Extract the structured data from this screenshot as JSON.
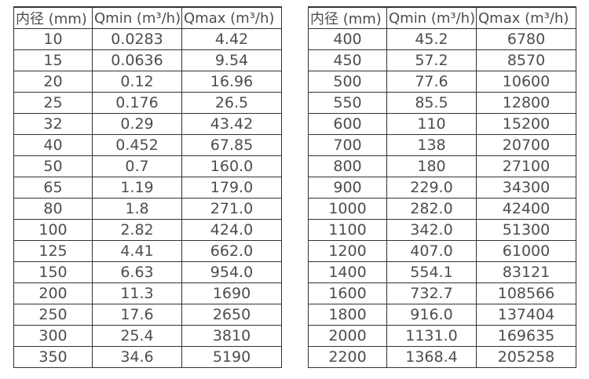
{
  "page": {
    "background": "#ffffff",
    "text_color": "#4d4d4d",
    "border_color": "#333333"
  },
  "tables": [
    {
      "name": "flow-spec-table-small-diameters",
      "headers": [
        "内径 (mm)",
        "Qmin (m³/h)",
        "Qmax (m³/h)"
      ],
      "rows": [
        [
          "10",
          "0.0283",
          "4.42"
        ],
        [
          "15",
          "0.0636",
          "9.54"
        ],
        [
          "20",
          "0.12",
          "16.96"
        ],
        [
          "25",
          "0.176",
          "26.5"
        ],
        [
          "32",
          "0.29",
          "43.42"
        ],
        [
          "40",
          "0.452",
          "67.85"
        ],
        [
          "50",
          "0.7",
          "160.0"
        ],
        [
          "65",
          "1.19",
          "179.0"
        ],
        [
          "80",
          "1.8",
          "271.0"
        ],
        [
          "100",
          "2.82",
          "424.0"
        ],
        [
          "125",
          "4.41",
          "662.0"
        ],
        [
          "150",
          "6.63",
          "954.0"
        ],
        [
          "200",
          "11.3",
          "1690"
        ],
        [
          "250",
          "17.6",
          "2650"
        ],
        [
          "300",
          "25.4",
          "3810"
        ],
        [
          "350",
          "34.6",
          "5190"
        ]
      ]
    },
    {
      "name": "flow-spec-table-large-diameters",
      "headers": [
        "内径 (mm)",
        "Qmin (m³/h)",
        "Qmax (m³/h)"
      ],
      "rows": [
        [
          "400",
          "45.2",
          "6780"
        ],
        [
          "450",
          "57.2",
          "8570"
        ],
        [
          "500",
          "77.6",
          "10600"
        ],
        [
          "550",
          "85.5",
          "12800"
        ],
        [
          "600",
          "110",
          "15200"
        ],
        [
          "700",
          "138",
          "20700"
        ],
        [
          "800",
          "180",
          "27100"
        ],
        [
          "900",
          "229.0",
          "34300"
        ],
        [
          "1000",
          "282.0",
          "42400"
        ],
        [
          "1100",
          "342.0",
          "51300"
        ],
        [
          "1200",
          "407.0",
          "61000"
        ],
        [
          "1400",
          "554.1",
          "83121"
        ],
        [
          "1600",
          "732.7",
          "108566"
        ],
        [
          "1800",
          "916.0",
          "137404"
        ],
        [
          "2000",
          "1131.0",
          "169635"
        ],
        [
          "2200",
          "1368.4",
          "205258"
        ]
      ]
    }
  ]
}
